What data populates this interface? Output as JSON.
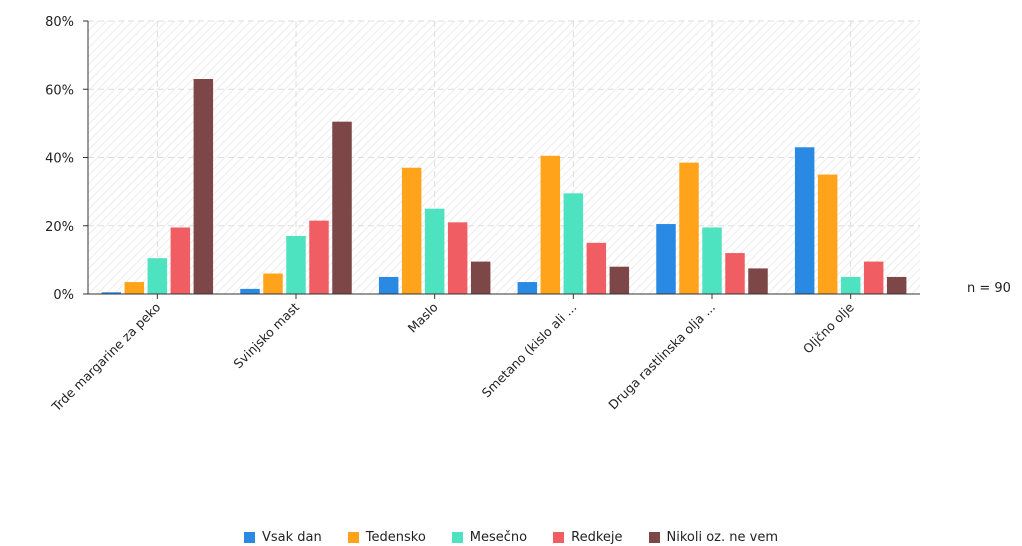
{
  "chart_data": {
    "type": "bar",
    "categories": [
      "Trde margarine za peko",
      "Svinjsko mast",
      "Maslo",
      "Smetano (kislo ali ...",
      "Druga rastlinska olja ...",
      "Oljčno olje"
    ],
    "series": [
      {
        "name": "Vsak dan",
        "color": "#2a8ae3",
        "values": [
          0.5,
          1.5,
          5,
          3.5,
          20.5,
          43
        ]
      },
      {
        "name": "Tedensko",
        "color": "#ffa31a",
        "values": [
          3.5,
          6,
          37,
          40.5,
          38.5,
          35
        ]
      },
      {
        "name": "Mesečno",
        "color": "#4de3c0",
        "values": [
          10.5,
          17,
          25,
          29.5,
          19.5,
          5
        ]
      },
      {
        "name": "Redkeje",
        "color": "#f05e63",
        "values": [
          19.5,
          21.5,
          21,
          15,
          12,
          9.5
        ]
      },
      {
        "name": "Nikoli oz. ne vem",
        "color": "#7d4747",
        "values": [
          63,
          50.5,
          9.5,
          8,
          7.5,
          5
        ]
      }
    ],
    "y_ticks": [
      "0%",
      "20%",
      "40%",
      "60%",
      "80%"
    ],
    "ylim": [
      0,
      80
    ],
    "grid": true,
    "legend_position": "bottom",
    "note": "n = 90"
  }
}
